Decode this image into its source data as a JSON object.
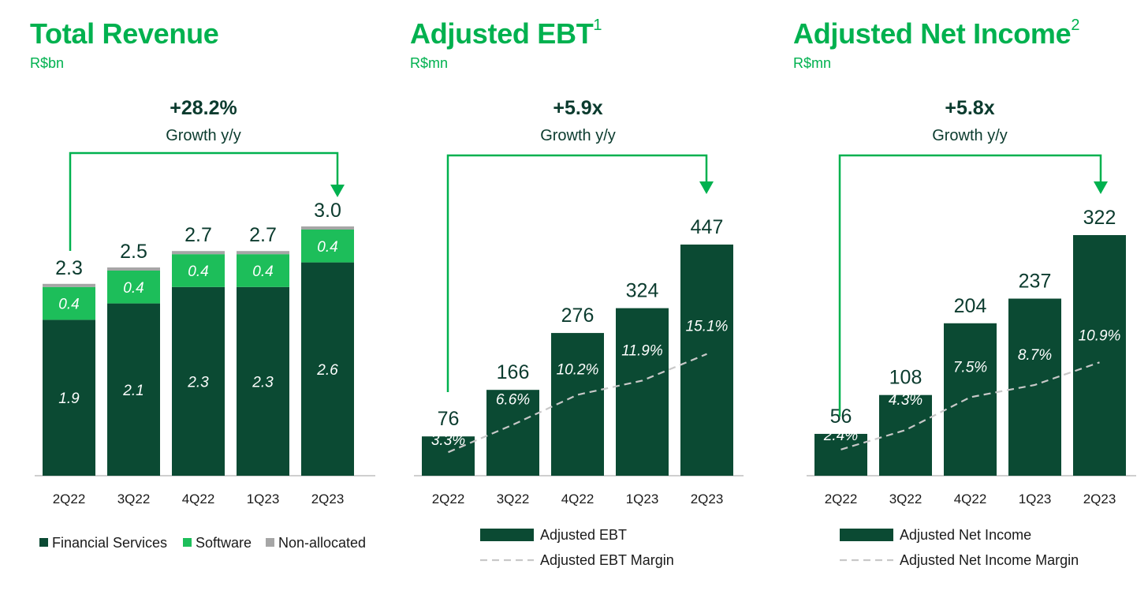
{
  "colors": {
    "dark_green": "#0b4a33",
    "bright_green": "#1dbe5a",
    "grey": "#a6a6a6",
    "arrow_green": "#00b14f",
    "text_dark": "#0b3b2e"
  },
  "panels": [
    {
      "title": "Total Revenue",
      "title_sup": "",
      "unit": "R$bn",
      "growth_value": "+28.2%",
      "growth_label": "Growth y/y"
    },
    {
      "title": "Adjusted EBT",
      "title_sup": "1",
      "unit": "R$mn",
      "growth_value": "+5.9x",
      "growth_label": "Growth y/y"
    },
    {
      "title": "Adjusted Net Income",
      "title_sup": "2",
      "unit": "R$mn",
      "growth_value": "+5.8x",
      "growth_label": "Growth y/y"
    }
  ],
  "chart_data": [
    {
      "type": "bar",
      "stacked": true,
      "title": "Total Revenue",
      "unit": "R$bn",
      "categories": [
        "2Q22",
        "3Q22",
        "4Q22",
        "1Q23",
        "2Q23"
      ],
      "series": [
        {
          "name": "Financial Services",
          "values": [
            1.9,
            2.1,
            2.3,
            2.3,
            2.6
          ],
          "labels": [
            "1.9",
            "2.1",
            "2.3",
            "2.3",
            "2.6"
          ]
        },
        {
          "name": "Software",
          "values": [
            0.4,
            0.4,
            0.4,
            0.4,
            0.4
          ],
          "labels": [
            "0.4",
            "0.4",
            "0.4",
            "0.4",
            "0.4"
          ]
        },
        {
          "name": "Non-allocated",
          "values": [
            0.02,
            0.02,
            0.02,
            0.02,
            0.02
          ]
        }
      ],
      "totals": [
        "2.3",
        "2.5",
        "2.7",
        "2.7",
        "3.0"
      ],
      "total_values": [
        2.3,
        2.5,
        2.7,
        2.7,
        3.0
      ],
      "legend": {
        "position": "bottom",
        "items": [
          "Financial Services",
          "Software",
          "Non-allocated"
        ]
      },
      "growth": "+28.2%"
    },
    {
      "type": "bar",
      "title": "Adjusted EBT",
      "unit": "R$mn",
      "categories": [
        "2Q22",
        "3Q22",
        "4Q22",
        "1Q23",
        "2Q23"
      ],
      "series": [
        {
          "name": "Adjusted EBT",
          "values": [
            76,
            166,
            276,
            324,
            447
          ]
        },
        {
          "name": "Adjusted EBT Margin",
          "type": "line",
          "style": "dashed",
          "values": [
            3.3,
            6.6,
            10.2,
            11.9,
            15.1
          ],
          "labels": [
            "3.3%",
            "6.6%",
            "10.2%",
            "11.9%",
            "15.1%"
          ]
        }
      ],
      "value_labels": [
        "76",
        "166",
        "276",
        "324",
        "447"
      ],
      "legend": {
        "position": "bottom",
        "items": [
          "Adjusted EBT",
          "Adjusted EBT Margin"
        ]
      },
      "growth": "+5.9x"
    },
    {
      "type": "bar",
      "title": "Adjusted Net Income",
      "unit": "R$mn",
      "categories": [
        "2Q22",
        "3Q22",
        "4Q22",
        "1Q23",
        "2Q23"
      ],
      "series": [
        {
          "name": "Adjusted Net Income",
          "values": [
            56,
            108,
            204,
            237,
            322
          ]
        },
        {
          "name": "Adjusted Net Income Margin",
          "type": "line",
          "style": "dashed",
          "values": [
            2.4,
            4.3,
            7.5,
            8.7,
            10.9
          ],
          "labels": [
            "2.4%",
            "4.3%",
            "7.5%",
            "8.7%",
            "10.9%"
          ]
        }
      ],
      "value_labels": [
        "56",
        "108",
        "204",
        "237",
        "322"
      ],
      "legend": {
        "position": "bottom",
        "items": [
          "Adjusted Net Income",
          "Adjusted Net Income Margin"
        ]
      },
      "growth": "+5.8x"
    }
  ]
}
